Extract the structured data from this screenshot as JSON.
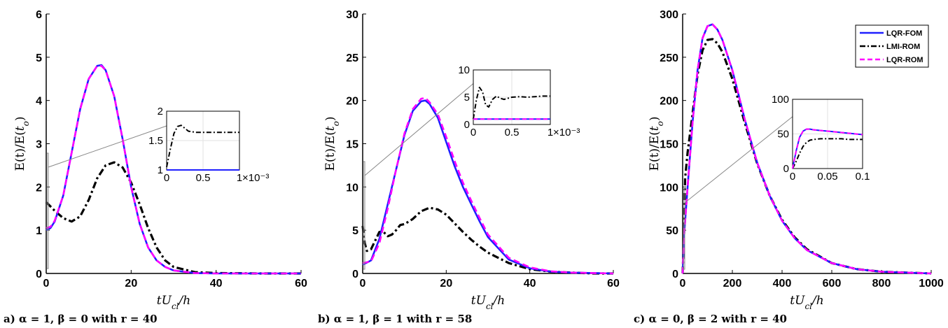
{
  "colors": {
    "fom": "#1f1fff",
    "lmi": "#000000",
    "lqrrom": "#ff00ff"
  },
  "legend": [
    "LQR-FOM",
    "LMI-ROM",
    "LQR-ROM"
  ],
  "chart_data": [
    {
      "type": "line",
      "ylabel": "E(t)/E(t_o)",
      "xlabel": "tU_cl/h",
      "caption": "a) α = 1, β = 0 with r = 40",
      "xlim": [
        0,
        60
      ],
      "ylim": [
        0,
        6
      ],
      "xticks": [
        "0",
        "20",
        "40",
        "60"
      ],
      "yticks": [
        "0",
        "1",
        "2",
        "3",
        "4",
        "5",
        "6"
      ],
      "series": [
        {
          "name": "LQR-FOM",
          "x": [
            0,
            1,
            2,
            4,
            6,
            8,
            10,
            12,
            13,
            14,
            16,
            18,
            20,
            22,
            24,
            26,
            28,
            30,
            35,
            40,
            50,
            60
          ],
          "y": [
            1.0,
            1.05,
            1.2,
            1.8,
            2.8,
            3.8,
            4.5,
            4.8,
            4.82,
            4.7,
            4.1,
            3.1,
            2.0,
            1.15,
            0.6,
            0.3,
            0.15,
            0.07,
            0.01,
            0,
            0,
            0
          ]
        },
        {
          "name": "LMI-ROM",
          "x": [
            0,
            2,
            4,
            6,
            8,
            10,
            12,
            14,
            16,
            18,
            20,
            22,
            24,
            26,
            28,
            30,
            35,
            40,
            50,
            60
          ],
          "y": [
            1.65,
            1.45,
            1.28,
            1.2,
            1.32,
            1.7,
            2.2,
            2.5,
            2.57,
            2.45,
            2.1,
            1.6,
            1.05,
            0.6,
            0.3,
            0.15,
            0.03,
            0.01,
            0,
            0
          ]
        },
        {
          "name": "LQR-ROM",
          "x": [
            0,
            1,
            2,
            4,
            6,
            8,
            10,
            12,
            13,
            14,
            16,
            18,
            20,
            22,
            24,
            26,
            28,
            30,
            35,
            40,
            50,
            60
          ],
          "y": [
            1.05,
            1.08,
            1.22,
            1.8,
            2.8,
            3.8,
            4.5,
            4.8,
            4.8,
            4.7,
            4.1,
            3.1,
            2.0,
            1.15,
            0.6,
            0.3,
            0.15,
            0.07,
            0.01,
            0,
            0,
            0
          ]
        }
      ],
      "inset": {
        "xlim": [
          0,
          0.001
        ],
        "ylim": [
          1,
          2
        ],
        "xticks": [
          "0",
          "0.5",
          "1"
        ],
        "yticks": [
          "1",
          "1.5",
          "2"
        ],
        "exponent": "×10⁻³",
        "series": [
          {
            "name": "LMI-ROM",
            "x": [
              0,
              5e-05,
              0.0001,
              0.00015,
              0.0002,
              0.00025,
              0.0003,
              0.0004,
              0.0005,
              0.0006,
              0.0007,
              0.0008,
              0.0009,
              0.001
            ],
            "y": [
              1.05,
              1.35,
              1.62,
              1.74,
              1.76,
              1.71,
              1.66,
              1.64,
              1.64,
              1.64,
              1.64,
              1.64,
              1.64,
              1.64
            ]
          },
          {
            "name": "LQR-FOM",
            "x": [
              0,
              0.001
            ],
            "y": [
              1.0,
              1.0
            ]
          }
        ]
      }
    },
    {
      "type": "line",
      "ylabel": "E(t)/E(t_o)",
      "xlabel": "tU_cl/h",
      "caption": "b) α = 1, β = 1 with r = 58",
      "xlim": [
        0,
        60
      ],
      "ylim": [
        0,
        30
      ],
      "xticks": [
        "0",
        "20",
        "40",
        "60"
      ],
      "yticks": [
        "0",
        "5",
        "10",
        "15",
        "20",
        "25",
        "30"
      ],
      "series": [
        {
          "name": "LQR-FOM",
          "x": [
            0,
            2,
            4,
            6,
            8,
            10,
            12,
            14,
            15,
            16,
            18,
            20,
            22,
            24,
            26,
            28,
            30,
            35,
            40,
            45,
            50,
            55,
            60
          ],
          "y": [
            1.0,
            1.5,
            4.0,
            8.0,
            12.0,
            16.0,
            18.8,
            19.9,
            20.0,
            19.6,
            18.0,
            15.2,
            12.4,
            10.0,
            8.0,
            6.0,
            4.2,
            1.6,
            0.6,
            0.2,
            0.1,
            0.05,
            0
          ]
        },
        {
          "name": "LMI-ROM",
          "x": [
            0,
            0.5,
            1,
            2,
            3,
            4,
            5,
            6,
            7,
            8,
            9,
            10,
            12,
            14,
            16,
            18,
            20,
            22,
            24,
            26,
            28,
            30,
            35,
            40,
            45,
            50,
            55,
            60
          ],
          "y": [
            5.5,
            3.5,
            2.6,
            2.8,
            3.8,
            4.8,
            4.8,
            4.3,
            4.5,
            5.0,
            5.6,
            5.7,
            6.3,
            7.2,
            7.6,
            7.4,
            6.8,
            5.8,
            4.8,
            3.9,
            3.1,
            2.4,
            1.2,
            0.5,
            0.2,
            0.1,
            0,
            0
          ]
        },
        {
          "name": "LQR-ROM",
          "x": [
            0,
            2,
            4,
            6,
            8,
            10,
            12,
            14,
            15,
            16,
            18,
            20,
            22,
            24,
            26,
            28,
            30,
            35,
            40,
            45,
            50,
            55,
            60
          ],
          "y": [
            1.2,
            1.4,
            3.5,
            7.5,
            12.0,
            16.2,
            19.0,
            20.2,
            20.3,
            19.8,
            18.4,
            15.8,
            13.0,
            10.5,
            8.4,
            6.4,
            4.5,
            1.8,
            0.7,
            0.25,
            0.1,
            0.05,
            0
          ]
        }
      ],
      "inset": {
        "xlim": [
          0,
          0.001
        ],
        "ylim": [
          0,
          10
        ],
        "xticks": [
          "0",
          "0.5",
          "1"
        ],
        "yticks": [
          "0",
          "5",
          "10"
        ],
        "exponent": "×10⁻³",
        "series": [
          {
            "name": "LMI-ROM",
            "x": [
              0,
              4e-05,
              8e-05,
              0.00012,
              0.00016,
              0.0002,
              0.00025,
              0.0003,
              0.00035,
              0.0004,
              0.0005,
              0.0006,
              0.0007,
              0.0008,
              0.0009,
              0.001
            ],
            "y": [
              1.0,
              4.5,
              6.8,
              6.0,
              3.6,
              3.2,
              4.6,
              5.2,
              4.8,
              4.6,
              5.0,
              5.1,
              5.0,
              5.1,
              5.2,
              5.2
            ]
          },
          {
            "name": "LQR-FOM",
            "x": [
              0,
              0.001
            ],
            "y": [
              1.0,
              1.0
            ]
          },
          {
            "name": "LQR-ROM",
            "x": [
              0,
              0.001
            ],
            "y": [
              1.0,
              1.0
            ]
          }
        ]
      }
    },
    {
      "type": "line",
      "ylabel": "E(t)/E(t_o)",
      "xlabel": "tU_cl/h",
      "caption": "c) α = 0, β = 2 with r = 40",
      "xlim": [
        0,
        1000
      ],
      "ylim": [
        0,
        300
      ],
      "xticks": [
        "0",
        "200",
        "400",
        "600",
        "800",
        "1000"
      ],
      "yticks": [
        "0",
        "50",
        "100",
        "150",
        "200",
        "250",
        "300"
      ],
      "series": [
        {
          "name": "LQR-FOM",
          "x": [
            0,
            5,
            10,
            20,
            40,
            60,
            80,
            100,
            120,
            140,
            160,
            200,
            250,
            300,
            350,
            400,
            450,
            500,
            600,
            700,
            800,
            900,
            1000
          ],
          "y": [
            0,
            40,
            60,
            100,
            175,
            235,
            272,
            286,
            288,
            282,
            270,
            235,
            178,
            128,
            90,
            61,
            41,
            27,
            12,
            5,
            2,
            1,
            0
          ]
        },
        {
          "name": "LMI-ROM",
          "x": [
            0,
            5,
            10,
            20,
            40,
            60,
            80,
            100,
            120,
            140,
            160,
            200,
            250,
            300,
            350,
            400,
            450,
            500,
            600,
            700,
            800,
            900,
            1000
          ],
          "y": [
            0,
            45,
            110,
            140,
            185,
            230,
            258,
            270,
            271,
            266,
            256,
            225,
            174,
            127,
            90,
            62,
            42,
            28,
            12,
            5,
            2,
            1,
            0
          ]
        },
        {
          "name": "LQR-ROM",
          "x": [
            0,
            5,
            10,
            20,
            40,
            60,
            80,
            100,
            120,
            140,
            160,
            200,
            250,
            300,
            350,
            400,
            450,
            500,
            600,
            700,
            800,
            900,
            1000
          ],
          "y": [
            0,
            40,
            60,
            100,
            175,
            235,
            272,
            286,
            288,
            282,
            270,
            235,
            178,
            128,
            90,
            61,
            41,
            27,
            12,
            5,
            2,
            1,
            0
          ]
        }
      ],
      "inset": {
        "xlim": [
          0,
          0.1
        ],
        "ylim": [
          0,
          100
        ],
        "xticks": [
          "0",
          "0.05",
          "0.1"
        ],
        "yticks": [
          "0",
          "50",
          "100"
        ],
        "exponent": "",
        "series": [
          {
            "name": "LMI-ROM",
            "x": [
              0,
              0.005,
              0.01,
              0.015,
              0.02,
              0.025,
              0.03,
              0.04,
              0.05,
              0.06,
              0.07,
              0.08,
              0.09,
              0.1
            ],
            "y": [
              0,
              10,
              22,
              32,
              38,
              41,
              42,
              43,
              43,
              43,
              43,
              42,
              42,
              42
            ]
          },
          {
            "name": "LQR-FOM",
            "x": [
              0,
              0.005,
              0.01,
              0.015,
              0.02,
              0.025,
              0.03,
              0.04,
              0.05,
              0.06,
              0.07,
              0.08,
              0.09,
              0.1
            ],
            "y": [
              0,
              25,
              45,
              54,
              57,
              57,
              56,
              55,
              54,
              53,
              52,
              51,
              50,
              49
            ]
          },
          {
            "name": "LQR-ROM",
            "x": [
              0,
              0.005,
              0.01,
              0.015,
              0.02,
              0.025,
              0.03,
              0.04,
              0.05,
              0.06,
              0.07,
              0.08,
              0.09,
              0.1
            ],
            "y": [
              0,
              25,
              45,
              54,
              57,
              57,
              56,
              55,
              54,
              53,
              52,
              51,
              50,
              49
            ]
          }
        ]
      }
    }
  ]
}
